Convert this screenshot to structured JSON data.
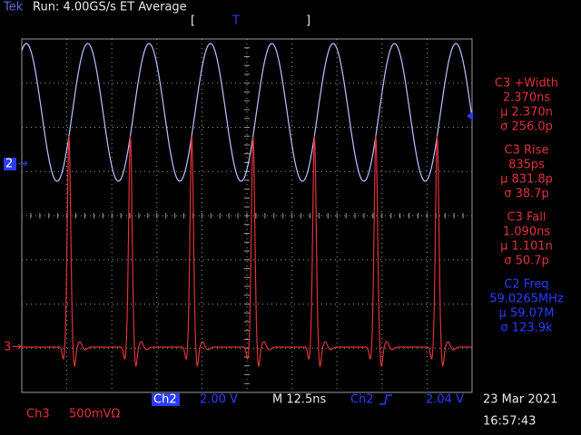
{
  "header": {
    "brand": "Tek",
    "status": "Run: 4.00GS/s ET Average",
    "trigger_marker": "T"
  },
  "markers": {
    "ch2": "2",
    "ch3": "3"
  },
  "measurements": [
    {
      "title": "C3 +Width",
      "value": "2.370ns",
      "mean": "µ 2.370n",
      "sigma": "σ 256.0p"
    },
    {
      "title": "C3 Rise",
      "value": "835ps",
      "mean": "µ 831.8p",
      "sigma": "σ 38.7p"
    },
    {
      "title": "C3 Fall",
      "value": "1.090ns",
      "mean": "µ 1.101n",
      "sigma": "σ 50.7p"
    },
    {
      "title": "C2 Freq",
      "value": "59.0265MHz",
      "mean": "µ 59.07M",
      "sigma": "σ 123.9k"
    }
  ],
  "footer": {
    "ch2_label": "Ch2",
    "ch2_scale": "2.00 V",
    "timebase": "M 12.5ns",
    "trigger_source": "Ch2",
    "trigger_level": "2.04 V",
    "ch3_label": "Ch3",
    "ch3_scale": "500mVΩ",
    "date": "23 Mar 2021",
    "time": "16:57:43"
  }
}
